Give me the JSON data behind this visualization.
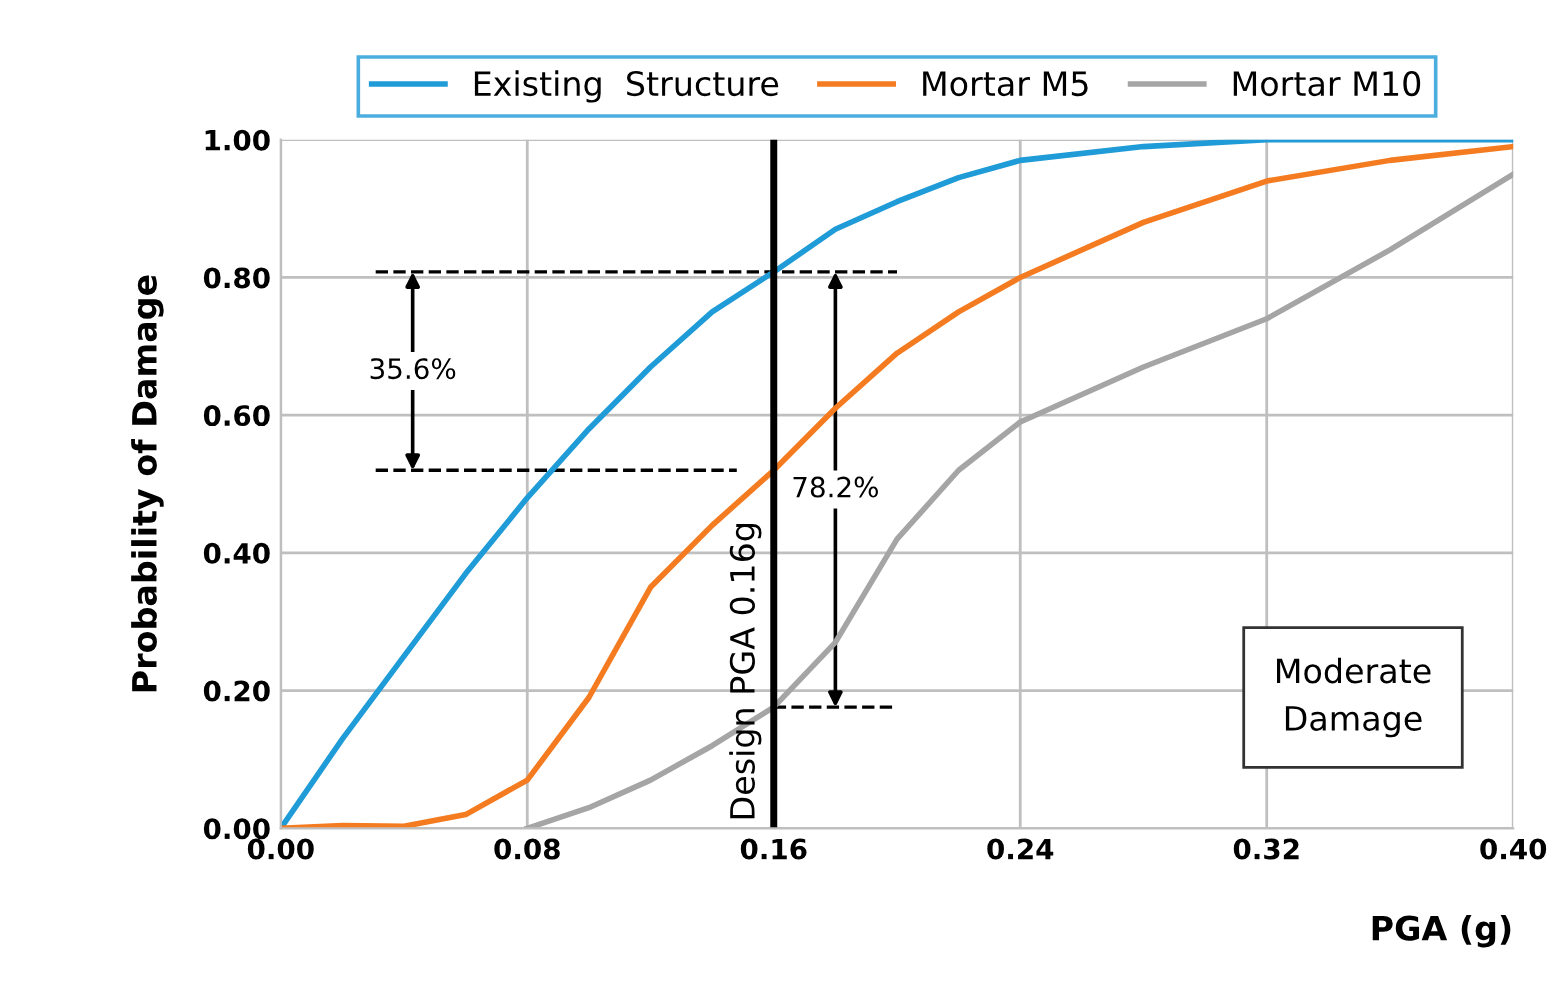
{
  "chart_data": {
    "type": "line",
    "xlabel": "PGA (g)",
    "ylabel": "Probability of Damage",
    "x": [
      0,
      0.02,
      0.04,
      0.06,
      0.08,
      0.1,
      0.12,
      0.14,
      0.16,
      0.18,
      0.2,
      0.22,
      0.24,
      0.28,
      0.32,
      0.36,
      0.4
    ],
    "series": [
      {
        "name": "Existing  Structure",
        "color": "#1f9bd7",
        "values": [
          0,
          0.13,
          0.25,
          0.37,
          0.48,
          0.58,
          0.67,
          0.75,
          0.808,
          0.87,
          0.91,
          0.945,
          0.97,
          0.99,
          1.0,
          1.0,
          1.0
        ]
      },
      {
        "name": "Mortar M5",
        "color": "#f47b20",
        "values": [
          0,
          0.004,
          0.003,
          0.02,
          0.07,
          0.19,
          0.35,
          0.44,
          0.52,
          0.61,
          0.69,
          0.75,
          0.8,
          0.88,
          0.94,
          0.97,
          0.99
        ]
      },
      {
        "name": "Mortar M10",
        "color": "#a5a5a5",
        "x": [
          0.08,
          0.1,
          0.12,
          0.14,
          0.16,
          0.18,
          0.2,
          0.22,
          0.24,
          0.28,
          0.32,
          0.36,
          0.4
        ],
        "values": [
          0,
          0.03,
          0.07,
          0.12,
          0.176,
          0.27,
          0.42,
          0.52,
          0.59,
          0.67,
          0.74,
          0.84,
          0.95
        ]
      }
    ],
    "xlim": [
      0,
      0.4
    ],
    "ylim": [
      0,
      1
    ],
    "xticks": [
      {
        "value": 0,
        "label": "0.00"
      },
      {
        "value": 0.08,
        "label": "0.08"
      },
      {
        "value": 0.16,
        "label": "0.16"
      },
      {
        "value": 0.24,
        "label": "0.24"
      },
      {
        "value": 0.32,
        "label": "0.32"
      },
      {
        "value": 0.4,
        "label": "0.40"
      }
    ],
    "yticks": [
      {
        "value": 0,
        "label": "0.00"
      },
      {
        "value": 0.2,
        "label": "0.20"
      },
      {
        "value": 0.4,
        "label": "0.40"
      },
      {
        "value": 0.6,
        "label": "0.60"
      },
      {
        "value": 0.8,
        "label": "0.80"
      },
      {
        "value": 1,
        "label": "1.00"
      }
    ],
    "ref_lines": [
      {
        "axis": "x",
        "value": 0.16,
        "label": "Design PGA 0.16g",
        "color": "#000000"
      },
      {
        "axis": "y",
        "value": 0.808,
        "color": "#000000",
        "line_style": "dashed"
      },
      {
        "axis": "y",
        "value": 0.52,
        "color": "#000000",
        "line_style": "dashed"
      },
      {
        "axis": "y",
        "value": 0.176,
        "color": "#000000",
        "line_style": "dashed"
      }
    ],
    "annotations": [
      "35.6%",
      "78.2%",
      "Moderate\nDamage"
    ],
    "grid": true,
    "legend": "top",
    "marker": "none",
    "line_style": "solid"
  }
}
